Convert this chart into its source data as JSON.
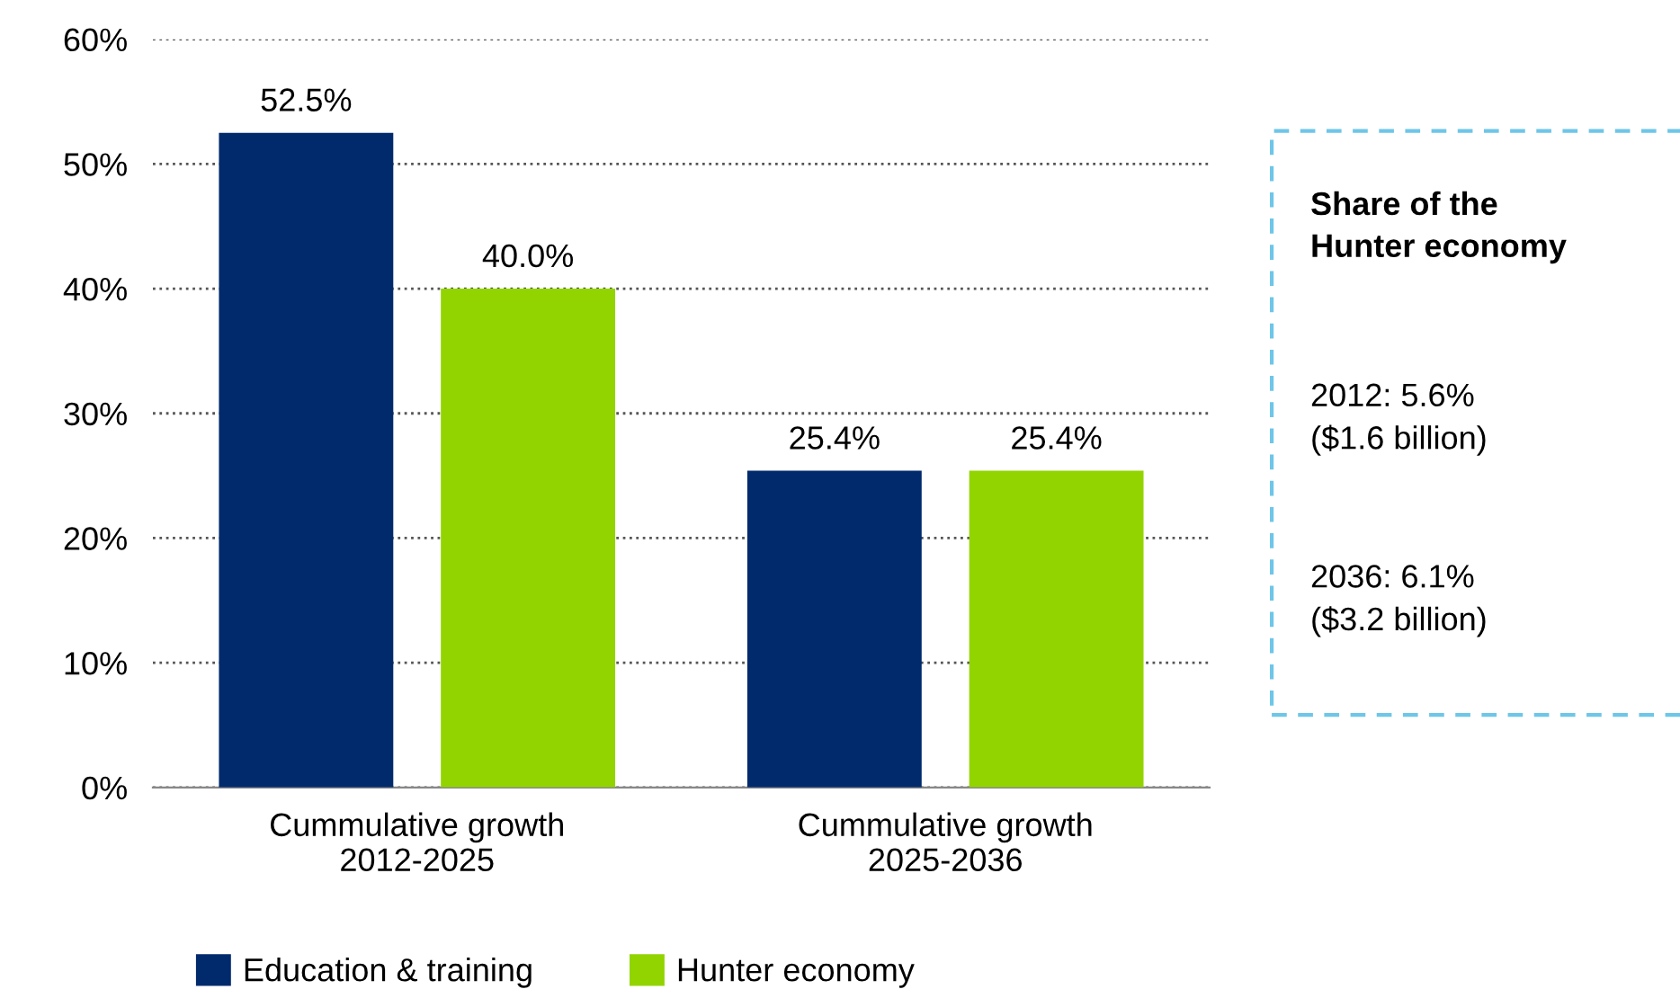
{
  "chart_data": {
    "type": "bar",
    "categories": [
      "Cummulative growth\n2012-2025",
      "Cummulative growth\n2025-2036"
    ],
    "series": [
      {
        "name": "Education & training",
        "color": "#002a6c",
        "values": [
          52.5,
          25.4
        ],
        "value_labels": [
          "52.5%",
          "25.4%"
        ]
      },
      {
        "name": "Hunter economy",
        "color": "#92d400",
        "values": [
          40.0,
          25.4
        ],
        "value_labels": [
          "40.0%",
          "25.4%"
        ]
      }
    ],
    "ylim": [
      0,
      60
    ],
    "yticks": [
      {
        "value": 0,
        "label": "0%"
      },
      {
        "value": 10,
        "label": "10%"
      },
      {
        "value": 20,
        "label": "20%"
      },
      {
        "value": 30,
        "label": "30%"
      },
      {
        "value": 40,
        "label": "40%"
      },
      {
        "value": 50,
        "label": "50%"
      },
      {
        "value": 60,
        "label": "60%"
      }
    ],
    "grid": "y",
    "legend": "bottom",
    "annotations": [
      "Share of the\nHunter economy",
      "2012: 5.6%\n($1.6 billion)",
      "2036: 6.1%\n($3.2 billion)"
    ]
  }
}
